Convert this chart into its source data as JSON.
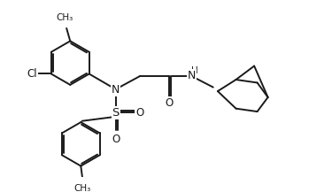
{
  "background_color": "#ffffff",
  "line_color": "#1a1a1a",
  "line_width": 1.4,
  "font_size": 8.5,
  "figsize": [
    3.75,
    2.17
  ],
  "dpi": 100,
  "xlim": [
    0,
    10
  ],
  "ylim": [
    0,
    5.8
  ]
}
